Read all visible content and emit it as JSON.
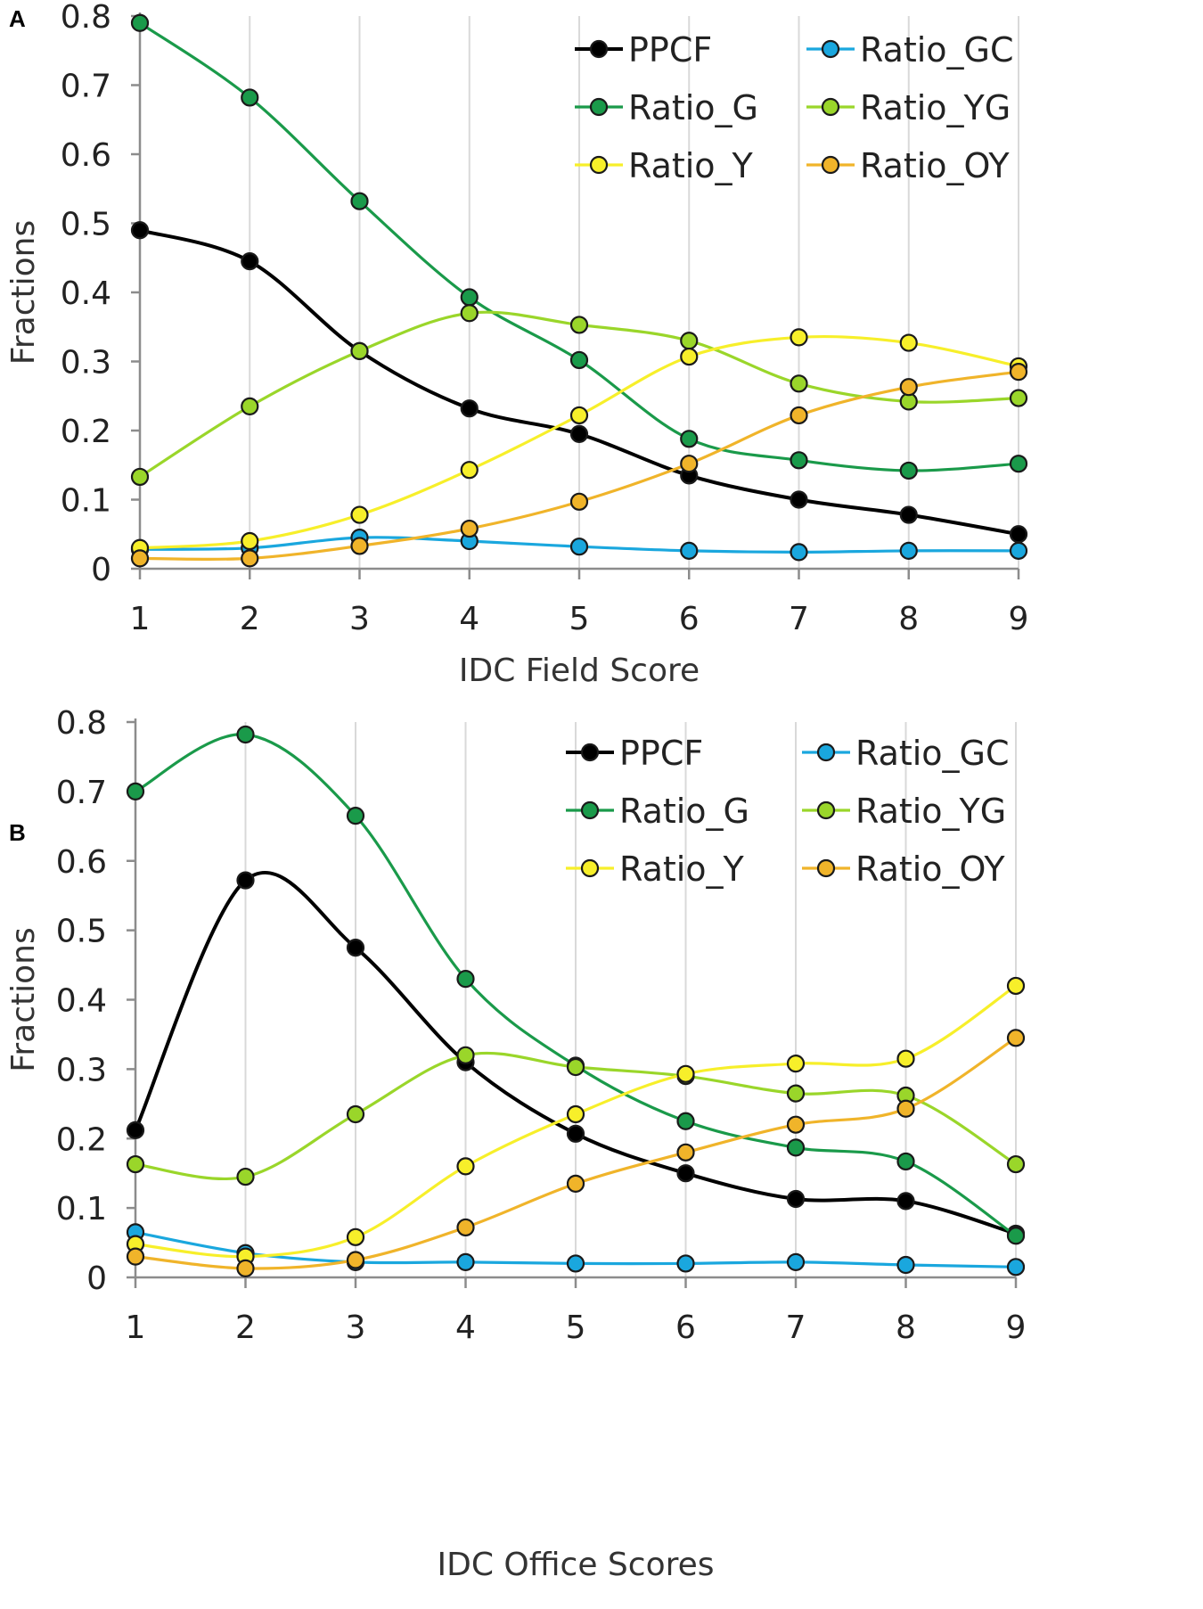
{
  "chart_data": [
    {
      "panel": "A",
      "type": "line",
      "xlabel": "IDC Field Score",
      "ylabel": "Fractions",
      "x": [
        1,
        2,
        3,
        4,
        5,
        6,
        7,
        8,
        9
      ],
      "xticks": [
        "1",
        "2",
        "3",
        "4",
        "5",
        "6",
        "7",
        "8",
        "9"
      ],
      "yticks": [
        "0",
        "0.1",
        "0.2",
        "0.3",
        "0.4",
        "0.5",
        "0.6",
        "0.7",
        "0.8"
      ],
      "ylim": [
        0,
        0.8
      ],
      "grid": "vertical",
      "legend_position": "top-right",
      "series": [
        {
          "name": "PPCF",
          "color": "#000000",
          "values": [
            0.49,
            0.445,
            0.315,
            0.232,
            0.195,
            0.135,
            0.1,
            0.078,
            0.05
          ]
        },
        {
          "name": "Ratio_GC",
          "color": "#1aa7de",
          "values": [
            0.028,
            0.03,
            0.045,
            0.04,
            0.032,
            0.026,
            0.024,
            0.026,
            0.026
          ]
        },
        {
          "name": "Ratio_G",
          "color": "#1a9a4a",
          "values": [
            0.79,
            0.682,
            0.532,
            0.393,
            0.302,
            0.188,
            0.157,
            0.142,
            0.152
          ]
        },
        {
          "name": "Ratio_YG",
          "color": "#9ad62a",
          "values": [
            0.133,
            0.235,
            0.315,
            0.37,
            0.353,
            0.33,
            0.268,
            0.242,
            0.247
          ]
        },
        {
          "name": "Ratio_Y",
          "color": "#f7ef2a",
          "values": [
            0.03,
            0.04,
            0.078,
            0.143,
            0.222,
            0.307,
            0.335,
            0.327,
            0.293
          ]
        },
        {
          "name": "Ratio_OY",
          "color": "#f0b42a",
          "values": [
            0.015,
            0.015,
            0.033,
            0.058,
            0.097,
            0.152,
            0.222,
            0.263,
            0.285
          ]
        }
      ]
    },
    {
      "panel": "B",
      "type": "line",
      "xlabel": "IDC Office Scores",
      "ylabel": "Fractions",
      "x": [
        1,
        2,
        3,
        4,
        5,
        6,
        7,
        8,
        9
      ],
      "xticks": [
        "1",
        "2",
        "3",
        "4",
        "5",
        "6",
        "7",
        "8",
        "9"
      ],
      "yticks": [
        "0",
        "0.1",
        "0.2",
        "0.3",
        "0.4",
        "0.5",
        "0.6",
        "0.7",
        "0.8"
      ],
      "ylim": [
        0,
        0.8
      ],
      "grid": "vertical",
      "legend_position": "top-right",
      "series": [
        {
          "name": "PPCF",
          "color": "#000000",
          "values": [
            0.212,
            0.572,
            0.475,
            0.31,
            0.207,
            0.15,
            0.113,
            0.11,
            0.063
          ]
        },
        {
          "name": "Ratio_GC",
          "color": "#1aa7de",
          "values": [
            0.065,
            0.035,
            0.022,
            0.022,
            0.02,
            0.02,
            0.022,
            0.018,
            0.015
          ]
        },
        {
          "name": "Ratio_G",
          "color": "#1a9a4a",
          "values": [
            0.7,
            0.782,
            0.665,
            0.43,
            0.305,
            0.225,
            0.187,
            0.167,
            0.06
          ]
        },
        {
          "name": "Ratio_YG",
          "color": "#9ad62a",
          "values": [
            0.163,
            0.145,
            0.235,
            0.32,
            0.303,
            0.29,
            0.265,
            0.262,
            0.163
          ]
        },
        {
          "name": "Ratio_Y",
          "color": "#f7ef2a",
          "values": [
            0.048,
            0.03,
            0.058,
            0.16,
            0.235,
            0.293,
            0.308,
            0.315,
            0.42
          ]
        },
        {
          "name": "Ratio_OY",
          "color": "#f0b42a",
          "values": [
            0.03,
            0.013,
            0.025,
            0.072,
            0.135,
            0.18,
            0.22,
            0.243,
            0.345
          ]
        }
      ]
    }
  ]
}
